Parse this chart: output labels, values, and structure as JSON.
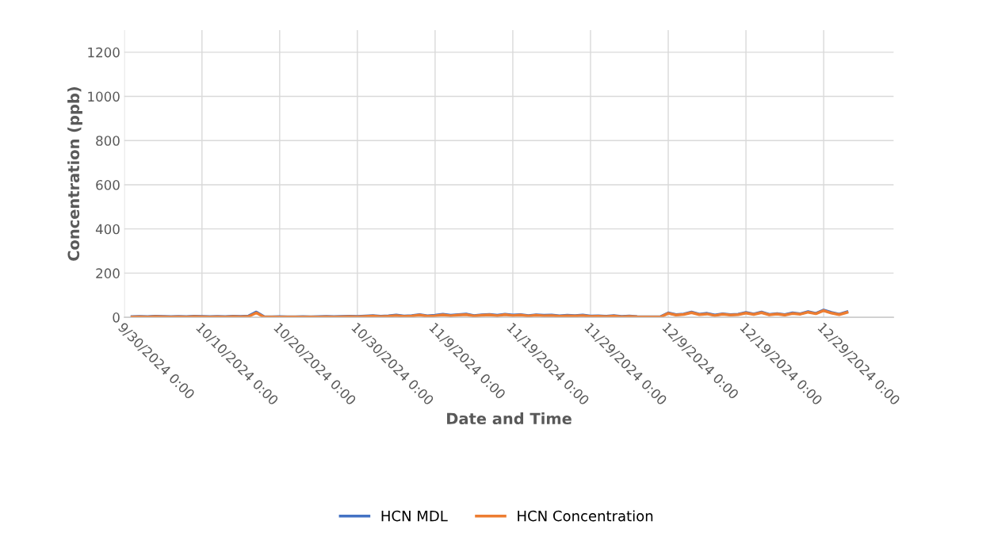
{
  "chart_data": {
    "type": "line",
    "xlabel": "Date and Time",
    "ylabel": "Concentration (ppb)",
    "x": [
      "2024-10-01",
      "2024-10-02",
      "2024-10-03",
      "2024-10-04",
      "2024-10-05",
      "2024-10-06",
      "2024-10-07",
      "2024-10-08",
      "2024-10-09",
      "2024-10-10",
      "2024-10-11",
      "2024-10-12",
      "2024-10-13",
      "2024-10-14",
      "2024-10-15",
      "2024-10-16",
      "2024-10-17",
      "2024-10-18",
      "2024-10-19",
      "2024-10-20",
      "2024-10-21",
      "2024-10-22",
      "2024-10-23",
      "2024-10-24",
      "2024-10-25",
      "2024-10-26",
      "2024-10-27",
      "2024-10-28",
      "2024-10-29",
      "2024-10-30",
      "2024-10-31",
      "2024-11-01",
      "2024-11-02",
      "2024-11-03",
      "2024-11-04",
      "2024-11-05",
      "2024-11-06",
      "2024-11-07",
      "2024-11-08",
      "2024-11-09",
      "2024-11-10",
      "2024-11-11",
      "2024-11-12",
      "2024-11-13",
      "2024-11-14",
      "2024-11-15",
      "2024-11-16",
      "2024-11-17",
      "2024-11-18",
      "2024-11-19",
      "2024-11-20",
      "2024-11-21",
      "2024-11-22",
      "2024-11-23",
      "2024-11-24",
      "2024-11-25",
      "2024-11-26",
      "2024-11-27",
      "2024-11-28",
      "2024-11-29",
      "2024-11-30",
      "2024-12-01",
      "2024-12-02",
      "2024-12-03",
      "2024-12-04",
      "2024-12-05",
      "2024-12-06",
      "2024-12-07",
      "2024-12-08",
      "2024-12-09",
      "2024-12-10",
      "2024-12-11",
      "2024-12-12",
      "2024-12-13",
      "2024-12-14",
      "2024-12-15",
      "2024-12-16",
      "2024-12-17",
      "2024-12-18",
      "2024-12-19",
      "2024-12-20",
      "2024-12-21",
      "2024-12-22",
      "2024-12-23",
      "2024-12-24",
      "2024-12-25",
      "2024-12-26",
      "2024-12-27",
      "2024-12-28",
      "2024-12-29",
      "2024-12-30",
      "2024-12-31",
      "2025-01-01"
    ],
    "series": [
      {
        "name": "HCN MDL",
        "color": "#4472c4",
        "values": [
          3,
          4,
          3,
          5,
          4,
          3,
          4,
          3,
          5,
          4,
          3,
          4,
          3,
          5,
          4,
          6,
          24,
          3,
          2,
          3,
          2,
          2,
          3,
          2,
          3,
          4,
          3,
          4,
          5,
          4,
          6,
          8,
          5,
          7,
          10,
          6,
          8,
          12,
          7,
          9,
          14,
          9,
          12,
          15,
          8,
          11,
          13,
          9,
          14,
          10,
          12,
          8,
          11,
          9,
          10,
          7,
          9,
          8,
          10,
          6,
          7,
          5,
          8,
          4,
          6,
          3,
          2,
          2,
          3,
          20,
          12,
          15,
          24,
          14,
          18,
          10,
          16,
          12,
          14,
          22,
          15,
          24,
          13,
          17,
          12,
          20,
          16,
          26,
          18,
          33,
          22,
          14,
          25
        ]
      },
      {
        "name": "HCN Concentration",
        "color": "#ed7d31",
        "values": [
          1,
          2,
          1,
          3,
          2,
          1,
          2,
          1,
          3,
          2,
          1,
          2,
          1,
          3,
          2,
          4,
          20,
          1,
          1,
          1,
          1,
          1,
          1,
          1,
          1,
          2,
          1,
          2,
          3,
          2,
          4,
          6,
          3,
          5,
          8,
          4,
          6,
          10,
          5,
          7,
          11,
          7,
          10,
          12,
          6,
          9,
          11,
          7,
          12,
          8,
          10,
          6,
          9,
          7,
          8,
          5,
          7,
          6,
          8,
          4,
          5,
          3,
          6,
          2,
          4,
          2,
          1,
          1,
          1,
          18,
          10,
          13,
          21,
          12,
          15,
          8,
          14,
          10,
          12,
          19,
          13,
          21,
          11,
          15,
          10,
          17,
          14,
          23,
          16,
          30,
          19,
          12,
          22
        ]
      }
    ],
    "xlim": [
      "2024-09-30",
      "2025-01-07"
    ],
    "xticks": [
      {
        "value": "2024-09-30",
        "label": "9/30/2024 0:00"
      },
      {
        "value": "2024-10-10",
        "label": "10/10/2024 0:00"
      },
      {
        "value": "2024-10-20",
        "label": "10/20/2024 0:00"
      },
      {
        "value": "2024-10-30",
        "label": "10/30/2024 0:00"
      },
      {
        "value": "2024-11-09",
        "label": "11/9/2024 0:00"
      },
      {
        "value": "2024-11-19",
        "label": "11/19/2024 0:00"
      },
      {
        "value": "2024-11-29",
        "label": "11/29/2024 0:00"
      },
      {
        "value": "2024-12-09",
        "label": "12/9/2024 0:00"
      },
      {
        "value": "2024-12-19",
        "label": "12/19/2024 0:00"
      },
      {
        "value": "2024-12-29",
        "label": "12/29/2024 0:00"
      }
    ],
    "ylim": [
      0,
      1300
    ],
    "yticks": [
      0,
      200,
      400,
      600,
      800,
      1000,
      1200
    ],
    "grid": true,
    "legend": "bottom",
    "marker": "none",
    "line_style": "solid"
  }
}
